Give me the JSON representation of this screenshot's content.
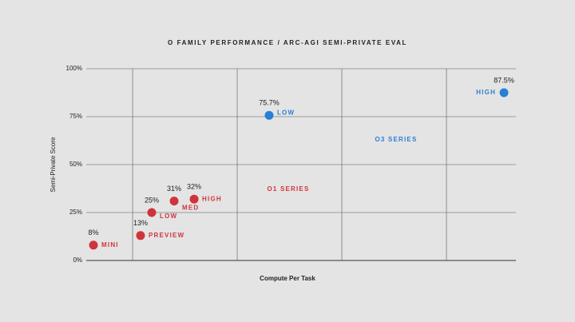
{
  "chart_data": {
    "type": "scatter",
    "title": "O FAMILY PERFORMANCE / ARC-AGI SEMI-PRIVATE EVAL",
    "xlabel": "Compute Per Task",
    "ylabel": "Semi-Private Score",
    "xlim": [
      -0.443,
      3.664
    ],
    "xticks": [
      0,
      1,
      2,
      3
    ],
    "ylim": [
      0,
      100
    ],
    "yticks": [
      {
        "value": 0,
        "label": "0%"
      },
      {
        "value": 25,
        "label": "25%"
      },
      {
        "value": 50,
        "label": "50%"
      },
      {
        "value": 75,
        "label": "75%"
      },
      {
        "value": 100,
        "label": "100%"
      }
    ],
    "grid": true,
    "series": [
      {
        "name": "O1 SERIES",
        "color": "#d0343b",
        "x": [
          -0.374,
          0.076,
          0.183,
          0.397,
          0.588
        ],
        "values": [
          8,
          13,
          25,
          31,
          32
        ],
        "value_labels": [
          "8%",
          "13%",
          "25%",
          "31%",
          "32%"
        ],
        "point_labels": [
          "MINI",
          "PREVIEW",
          "LOW",
          "MED",
          "HIGH"
        ]
      },
      {
        "name": "O3 SERIES",
        "color": "#2a7fd4",
        "x": [
          1.305,
          3.55
        ],
        "values": [
          75.7,
          87.5
        ],
        "value_labels": [
          "75.7%",
          "87.5%"
        ],
        "point_labels": [
          "LOW",
          "HIGH"
        ]
      }
    ]
  }
}
